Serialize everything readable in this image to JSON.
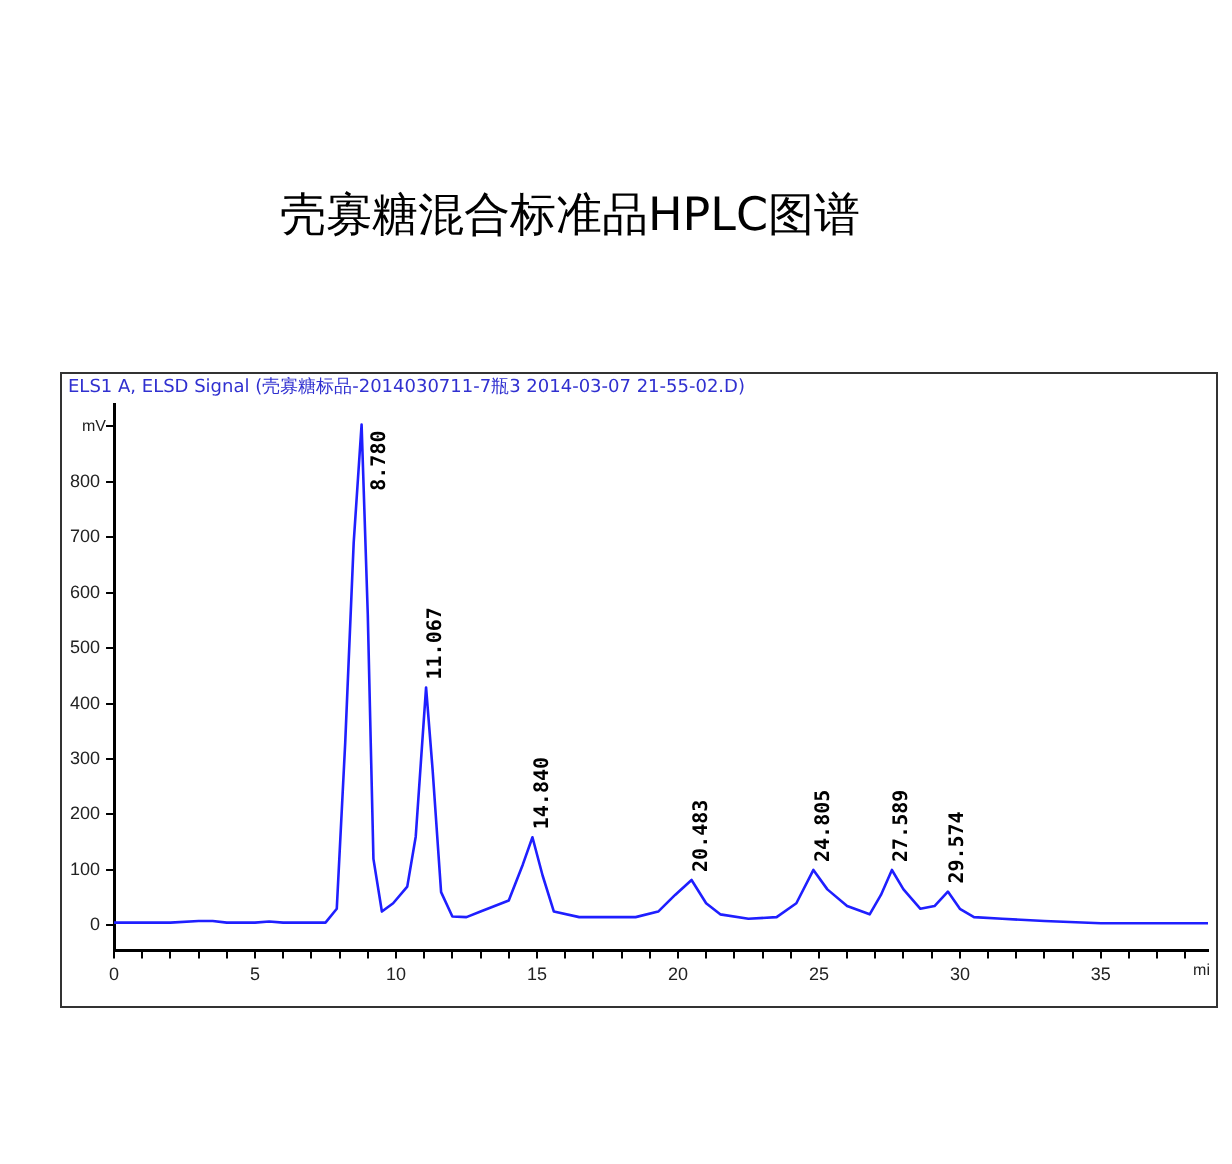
{
  "chart_data": {
    "type": "line",
    "title": "壳寡糖混合标准品HPLC图谱",
    "subtitle": "ELS1 A, ELSD Signal (壳寡糖标品-2014030711-7瓶3 2014-03-07 21-55-02.D)",
    "xlabel": "mi",
    "ylabel": "mV",
    "series": [
      {
        "color": "#1f1fff",
        "x": [
          0,
          2,
          3,
          3.5,
          4,
          5,
          5.5,
          6,
          7.5,
          7.9,
          8.2,
          8.5,
          8.78,
          9.0,
          9.2,
          9.5,
          9.9,
          10.4,
          10.7,
          11.067,
          11.3,
          11.6,
          12.0,
          12.5,
          13.0,
          14.0,
          14.5,
          14.84,
          15.2,
          15.6,
          16.5,
          18.5,
          19.3,
          19.9,
          20.483,
          21.0,
          21.5,
          22.5,
          23.5,
          24.2,
          24.805,
          25.3,
          26.0,
          26.8,
          27.2,
          27.589,
          28.0,
          28.6,
          29.1,
          29.574,
          30.0,
          30.5,
          31.5,
          33.0,
          35.0,
          38.8
        ],
        "values": [
          5,
          5,
          8,
          8,
          5,
          5,
          7,
          5,
          5,
          30,
          330,
          690,
          903,
          560,
          120,
          25,
          40,
          70,
          160,
          429,
          280,
          60,
          16,
          15,
          25,
          45,
          110,
          159,
          90,
          25,
          15,
          15,
          25,
          55,
          82,
          40,
          20,
          12,
          15,
          40,
          100,
          65,
          35,
          20,
          55,
          100,
          65,
          30,
          35,
          61,
          30,
          15,
          12,
          8,
          4,
          4
        ]
      }
    ],
    "annotations": [
      {
        "text": "8.780",
        "x": 8.78,
        "y": 903
      },
      {
        "text": "11.067",
        "x": 11.067,
        "y": 429
      },
      {
        "text": "14.840",
        "x": 14.84,
        "y": 159
      },
      {
        "text": "20.483",
        "x": 20.483,
        "y": 82
      },
      {
        "text": "24.805",
        "x": 24.805,
        "y": 100
      },
      {
        "text": "27.589",
        "x": 27.589,
        "y": 100
      },
      {
        "text": "29.574",
        "x": 29.574,
        "y": 61
      }
    ],
    "xlim": [
      0,
      38.8
    ],
    "ylim": [
      -45,
      940
    ],
    "xticks": [
      0,
      {
        "value": 1,
        "label": null
      },
      {
        "value": 2,
        "label": null
      },
      {
        "value": 3,
        "label": null
      },
      {
        "value": 4,
        "label": null
      },
      5,
      {
        "value": 6,
        "label": null
      },
      {
        "value": 7,
        "label": null
      },
      {
        "value": 8,
        "label": null
      },
      {
        "value": 9,
        "label": null
      },
      10,
      {
        "value": 11,
        "label": null
      },
      {
        "value": 12,
        "label": null
      },
      {
        "value": 13,
        "label": null
      },
      {
        "value": 14,
        "label": null
      },
      15,
      {
        "value": 16,
        "label": null
      },
      {
        "value": 17,
        "label": null
      },
      {
        "value": 18,
        "label": null
      },
      {
        "value": 19,
        "label": null
      },
      20,
      {
        "value": 21,
        "label": null
      },
      {
        "value": 22,
        "label": null
      },
      {
        "value": 23,
        "label": null
      },
      {
        "value": 24,
        "label": null
      },
      25,
      {
        "value": 26,
        "label": null
      },
      {
        "value": 27,
        "label": null
      },
      {
        "value": 28,
        "label": null
      },
      {
        "value": 29,
        "label": null
      },
      30,
      {
        "value": 31,
        "label": null
      },
      {
        "value": 32,
        "label": null
      },
      {
        "value": 33,
        "label": null
      },
      {
        "value": 34,
        "label": null
      },
      35,
      {
        "value": 36,
        "label": null
      },
      {
        "value": 37,
        "label": null
      },
      {
        "value": 38,
        "label": null
      }
    ],
    "yticks": [
      0,
      100,
      200,
      300,
      400,
      500,
      600,
      700,
      800,
      {
        "value": 900,
        "label": null
      }
    ],
    "grid": false,
    "legend": false,
    "marker": "none",
    "line_style": "solid"
  }
}
